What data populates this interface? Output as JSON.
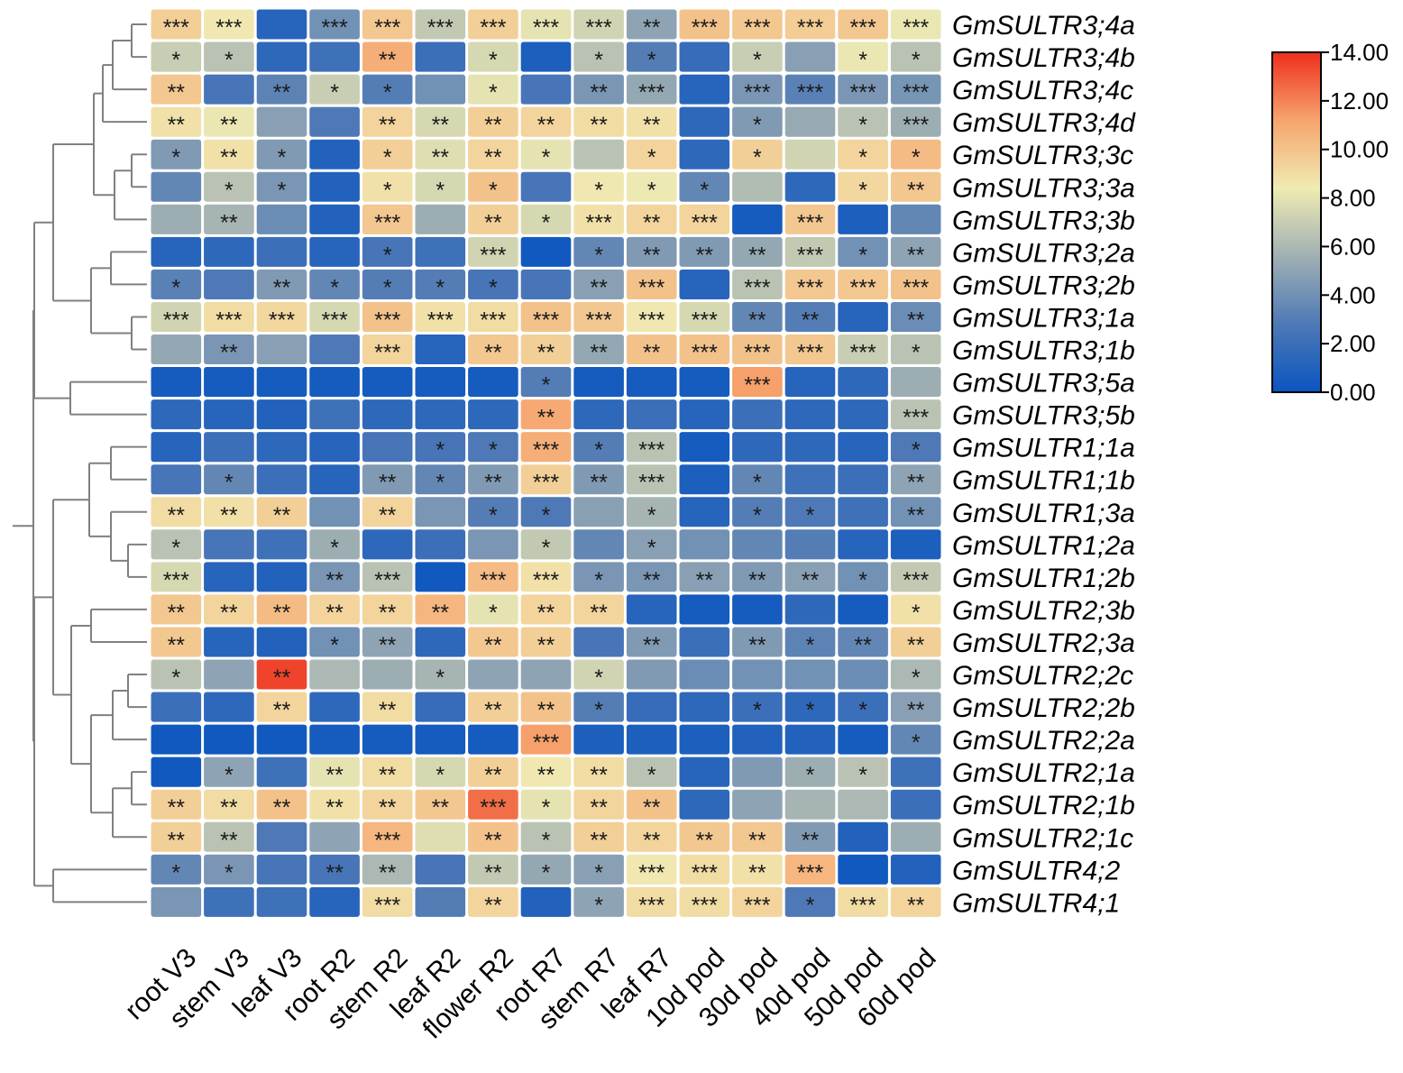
{
  "chart_data": {
    "type": "heatmap",
    "title": "",
    "columns": [
      "root V3",
      "stem V3",
      "leaf V3",
      "root R2",
      "stem R2",
      "leaf R2",
      "flower R2",
      "root R7",
      "stem R7",
      "leaf R7",
      "10d pod",
      "30d pod",
      "40d pod",
      "50d pod",
      "60d pod"
    ],
    "rows": [
      "GmSULTR3;4a",
      "GmSULTR3;4b",
      "GmSULTR3;4c",
      "GmSULTR3;4d",
      "GmSULTR3;3c",
      "GmSULTR3;3a",
      "GmSULTR3;3b",
      "GmSULTR3;2a",
      "GmSULTR3;2b",
      "GmSULTR3;1a",
      "GmSULTR3;1b",
      "GmSULTR3;5a",
      "GmSULTR3;5b",
      "GmSULTR1;1a",
      "GmSULTR1;1b",
      "GmSULTR1;3a",
      "GmSULTR1;2a",
      "GmSULTR1;2b",
      "GmSULTR2;3b",
      "GmSULTR2;3a",
      "GmSULTR2;2c",
      "GmSULTR2;2b",
      "GmSULTR2;2a",
      "GmSULTR2;1a",
      "GmSULTR2;1b",
      "GmSULTR2;1c",
      "GmSULTR4;2",
      "GmSULTR4;1"
    ],
    "values": [
      [
        9.5,
        8.5,
        1.2,
        4.0,
        9.8,
        6.8,
        9.5,
        8.0,
        7.3,
        5.0,
        10.0,
        9.8,
        9.6,
        9.8,
        8.2
      ],
      [
        7.0,
        6.5,
        1.5,
        2.2,
        10.8,
        2.0,
        7.5,
        0.8,
        6.5,
        3.0,
        1.8,
        7.0,
        4.8,
        8.2,
        6.5
      ],
      [
        9.8,
        2.5,
        3.3,
        7.0,
        3.0,
        4.0,
        8.0,
        2.5,
        4.3,
        5.2,
        1.2,
        4.3,
        3.2,
        4.3,
        4.2
      ],
      [
        8.8,
        8.2,
        4.8,
        2.8,
        9.3,
        7.5,
        9.5,
        9.3,
        9.0,
        8.8,
        1.5,
        4.5,
        5.3,
        6.5,
        5.5
      ],
      [
        4.5,
        8.8,
        4.5,
        1.0,
        9.5,
        7.8,
        9.3,
        8.0,
        6.5,
        9.3,
        1.5,
        9.5,
        7.3,
        9.3,
        10.3
      ],
      [
        3.5,
        6.5,
        4.3,
        1.0,
        8.8,
        7.5,
        10.0,
        2.5,
        8.5,
        8.3,
        3.5,
        6.2,
        1.5,
        9.2,
        9.8
      ],
      [
        5.5,
        5.8,
        3.8,
        1.0,
        9.8,
        5.5,
        9.5,
        7.5,
        8.8,
        9.3,
        9.3,
        0.5,
        9.8,
        0.8,
        3.5
      ],
      [
        1.2,
        1.5,
        2.0,
        1.2,
        2.5,
        2.2,
        7.3,
        0.3,
        3.5,
        4.5,
        4.5,
        5.2,
        6.8,
        4.0,
        5.0
      ],
      [
        3.2,
        2.8,
        4.5,
        3.5,
        3.0,
        3.0,
        2.5,
        2.5,
        4.8,
        10.0,
        1.2,
        6.5,
        9.8,
        9.8,
        10.0
      ],
      [
        7.3,
        9.0,
        9.2,
        7.5,
        10.0,
        8.8,
        9.0,
        10.0,
        9.8,
        8.5,
        7.5,
        3.5,
        3.0,
        1.2,
        3.8
      ],
      [
        5.2,
        4.3,
        4.8,
        2.8,
        9.3,
        1.2,
        9.8,
        9.5,
        5.2,
        10.0,
        10.0,
        10.0,
        9.8,
        7.0,
        6.5
      ],
      [
        0.5,
        0.5,
        0.5,
        0.5,
        0.5,
        0.5,
        0.5,
        3.0,
        0.5,
        0.5,
        0.5,
        11.3,
        1.2,
        1.5,
        5.5
      ],
      [
        1.5,
        1.2,
        1.0,
        2.2,
        1.5,
        1.5,
        1.5,
        11.0,
        1.5,
        2.0,
        1.2,
        2.0,
        1.5,
        1.5,
        6.5
      ],
      [
        1.2,
        2.0,
        1.5,
        1.2,
        2.5,
        2.5,
        2.8,
        10.8,
        3.0,
        6.5,
        0.5,
        1.5,
        1.5,
        1.2,
        2.8
      ],
      [
        2.5,
        3.5,
        2.0,
        1.2,
        4.5,
        3.5,
        4.5,
        9.5,
        4.5,
        6.5,
        0.8,
        3.5,
        2.2,
        2.0,
        5.0
      ],
      [
        9.0,
        8.8,
        9.5,
        4.0,
        9.3,
        4.3,
        3.0,
        2.8,
        4.8,
        5.8,
        1.2,
        3.0,
        2.8,
        2.2,
        4.0
      ],
      [
        6.5,
        2.5,
        2.2,
        5.5,
        1.5,
        2.0,
        4.3,
        6.8,
        3.5,
        4.8,
        4.0,
        3.5,
        3.0,
        1.2,
        0.8
      ],
      [
        7.5,
        1.2,
        1.0,
        4.3,
        6.5,
        0.3,
        10.3,
        8.8,
        4.3,
        4.3,
        4.8,
        4.5,
        4.8,
        4.0,
        6.8
      ],
      [
        9.8,
        9.3,
        10.3,
        9.3,
        9.3,
        10.5,
        8.0,
        9.3,
        9.3,
        1.2,
        0.5,
        0.5,
        1.5,
        0.5,
        8.8
      ],
      [
        9.8,
        1.2,
        1.0,
        4.0,
        5.0,
        1.5,
        9.8,
        9.5,
        2.5,
        4.5,
        2.0,
        4.5,
        3.3,
        3.5,
        9.5
      ],
      [
        6.5,
        5.0,
        13.5,
        6.0,
        5.5,
        5.8,
        5.0,
        5.0,
        7.3,
        4.5,
        3.8,
        4.0,
        4.0,
        3.8,
        6.0
      ],
      [
        2.0,
        1.5,
        9.3,
        1.5,
        9.0,
        1.8,
        9.5,
        10.0,
        3.0,
        1.8,
        1.5,
        2.0,
        1.5,
        2.0,
        4.8
      ],
      [
        0.3,
        0.3,
        0.3,
        0.5,
        0.5,
        0.5,
        0.5,
        11.3,
        0.8,
        0.8,
        0.8,
        1.0,
        1.0,
        0.5,
        3.5
      ],
      [
        0.3,
        5.0,
        2.2,
        8.0,
        9.0,
        7.5,
        9.5,
        8.5,
        9.0,
        6.5,
        1.2,
        4.5,
        5.5,
        6.5,
        2.2
      ],
      [
        9.5,
        9.0,
        10.0,
        8.8,
        9.3,
        9.8,
        12.5,
        8.0,
        9.3,
        10.0,
        1.5,
        5.0,
        5.8,
        6.0,
        2.0
      ],
      [
        9.5,
        6.5,
        2.8,
        5.0,
        10.5,
        7.8,
        10.0,
        6.5,
        9.5,
        9.3,
        9.8,
        9.8,
        4.5,
        1.0,
        5.5
      ],
      [
        3.5,
        4.3,
        2.5,
        2.5,
        6.0,
        2.5,
        6.8,
        5.2,
        4.8,
        8.5,
        9.0,
        8.8,
        10.5,
        0.3,
        1.0
      ],
      [
        4.3,
        2.2,
        2.2,
        1.2,
        9.0,
        3.0,
        9.3,
        1.0,
        5.0,
        9.0,
        9.0,
        9.3,
        2.8,
        9.0,
        9.3
      ]
    ],
    "significance": [
      [
        "***",
        "***",
        "",
        "***",
        "***",
        "***",
        "***",
        "***",
        "***",
        "**",
        "***",
        "***",
        "***",
        "***",
        "***"
      ],
      [
        "*",
        "*",
        "",
        "",
        "**",
        "",
        "*",
        "",
        "*",
        "*",
        "",
        "*",
        "",
        "*",
        "*"
      ],
      [
        "**",
        "",
        "**",
        "*",
        "*",
        "",
        "*",
        "",
        "**",
        "***",
        "",
        "***",
        "***",
        "***",
        "***"
      ],
      [
        "**",
        "**",
        "",
        "",
        "**",
        "**",
        "**",
        "**",
        "**",
        "**",
        "",
        "*",
        "",
        "*",
        "***"
      ],
      [
        "*",
        "**",
        "*",
        "",
        "*",
        "**",
        "**",
        "*",
        "",
        "*",
        "",
        "*",
        "",
        "*",
        "*"
      ],
      [
        "",
        "*",
        "*",
        "",
        "*",
        "*",
        "*",
        "",
        "*",
        "*",
        "*",
        "",
        "",
        "*",
        "**"
      ],
      [
        "",
        "**",
        "",
        "",
        "***",
        "",
        "**",
        "*",
        "***",
        "**",
        "***",
        "",
        "***",
        "",
        ""
      ],
      [
        "",
        "",
        "",
        "",
        "*",
        "",
        "***",
        "",
        "*",
        "**",
        "**",
        "**",
        "***",
        "*",
        "**"
      ],
      [
        "*",
        "",
        "**",
        "*",
        "*",
        "*",
        "*",
        "",
        "**",
        "***",
        "",
        "***",
        "***",
        "***",
        "***"
      ],
      [
        "***",
        "***",
        "***",
        "***",
        "***",
        "***",
        "***",
        "***",
        "***",
        "***",
        "***",
        "**",
        "**",
        "",
        "**"
      ],
      [
        "",
        "**",
        "",
        "",
        "***",
        "",
        "**",
        "**",
        "**",
        "**",
        "***",
        "***",
        "***",
        "***",
        "*"
      ],
      [
        "",
        "",
        "",
        "",
        "",
        "",
        "",
        "*",
        "",
        "",
        "",
        "***",
        "",
        "",
        ""
      ],
      [
        "",
        "",
        "",
        "",
        "",
        "",
        "",
        "**",
        "",
        "",
        "",
        "",
        "",
        "",
        "***"
      ],
      [
        "",
        "",
        "",
        "",
        "",
        "*",
        "*",
        "***",
        "*",
        "***",
        "",
        "",
        "",
        "",
        "*"
      ],
      [
        "",
        "*",
        "",
        "",
        "**",
        "*",
        "**",
        "***",
        "**",
        "***",
        "",
        "*",
        "",
        "",
        "**"
      ],
      [
        "**",
        "**",
        "**",
        "",
        "**",
        "",
        "*",
        "*",
        "",
        "*",
        "",
        "*",
        "*",
        "",
        "**"
      ],
      [
        "*",
        "",
        "",
        "*",
        "",
        "",
        "",
        "*",
        "",
        "*",
        "",
        "",
        "",
        "",
        ""
      ],
      [
        "***",
        "",
        "",
        "**",
        "***",
        "",
        "***",
        "***",
        "*",
        "**",
        "**",
        "**",
        "**",
        "*",
        "***"
      ],
      [
        "**",
        "**",
        "**",
        "**",
        "**",
        "**",
        "*",
        "**",
        "**",
        "",
        "",
        "",
        "",
        "",
        "*"
      ],
      [
        "**",
        "",
        "",
        "*",
        "**",
        "",
        "**",
        "**",
        "",
        "**",
        "",
        "**",
        "*",
        "**",
        "**"
      ],
      [
        "*",
        "",
        "**",
        "",
        "",
        "*",
        "",
        "",
        "*",
        "",
        "",
        "",
        "",
        "",
        "*"
      ],
      [
        "",
        "",
        "**",
        "",
        "**",
        "",
        "**",
        "**",
        "*",
        "",
        "",
        "*",
        "*",
        "*",
        "**"
      ],
      [
        "",
        "",
        "",
        "",
        "",
        "",
        "",
        "***",
        "",
        "",
        "",
        "",
        "",
        "",
        "*"
      ],
      [
        "",
        "*",
        "",
        "**",
        "**",
        "*",
        "**",
        "**",
        "**",
        "*",
        "",
        "",
        "*",
        "*",
        ""
      ],
      [
        "**",
        "**",
        "**",
        "**",
        "**",
        "**",
        "***",
        "*",
        "**",
        "**",
        "",
        "",
        "",
        "",
        ""
      ],
      [
        "**",
        "**",
        "",
        "",
        "***",
        "",
        "**",
        "*",
        "**",
        "**",
        "**",
        "**",
        "**",
        "",
        ""
      ],
      [
        "*",
        "*",
        "",
        "**",
        "**",
        "",
        "**",
        "*",
        "*",
        "***",
        "***",
        "**",
        "***",
        "",
        ""
      ],
      [
        "",
        "",
        "",
        "",
        "***",
        "",
        "**",
        "",
        "*",
        "***",
        "***",
        "***",
        "*",
        "***",
        "**"
      ]
    ],
    "colorbar": {
      "min": 0,
      "max": 14,
      "ticks": [
        "0.00",
        "2.00",
        "4.00",
        "6.00",
        "8.00",
        "10.00",
        "12.00",
        "14.00"
      ],
      "colors": [
        "#0a55c0",
        "#4e79b6",
        "#a0b0b3",
        "#f0ebb2",
        "#f6a46e",
        "#ee2f1c"
      ],
      "position": "right"
    }
  }
}
